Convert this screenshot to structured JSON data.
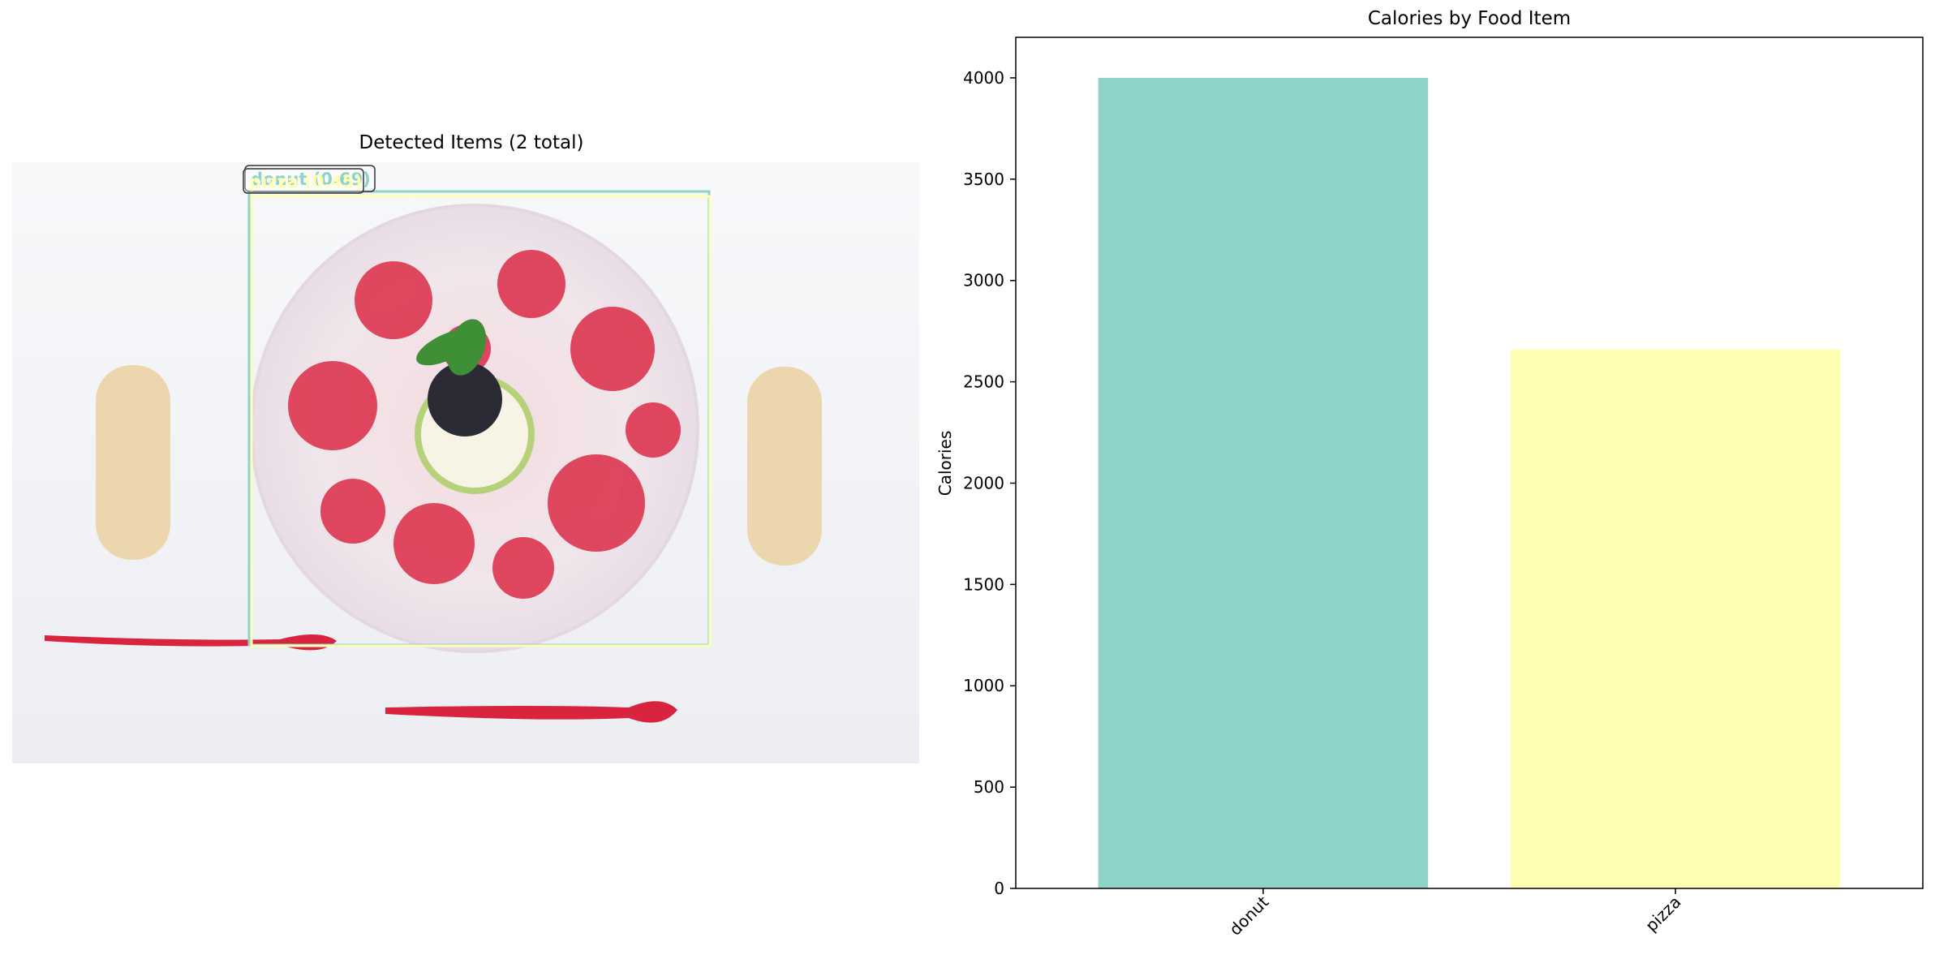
{
  "left_panel": {
    "title": "Detected Items (2 total)",
    "detections": [
      {
        "label": "donut (0.69)",
        "color": "#8dd3c7"
      },
      {
        "label": "pizza (0.45)",
        "color": "#ffffb3"
      }
    ]
  },
  "chart_data": {
    "type": "bar",
    "title": "Calories by Food Item",
    "xlabel": "",
    "ylabel": "Calories",
    "categories": [
      "donut",
      "pizza"
    ],
    "values": [
      4000,
      2660
    ],
    "colors": [
      "#8dd3c7",
      "#ffffb3"
    ],
    "ylim": [
      0,
      4200
    ],
    "yticks": [
      0,
      500,
      1000,
      1500,
      2000,
      2500,
      3000,
      3500,
      4000
    ],
    "grid": false
  }
}
